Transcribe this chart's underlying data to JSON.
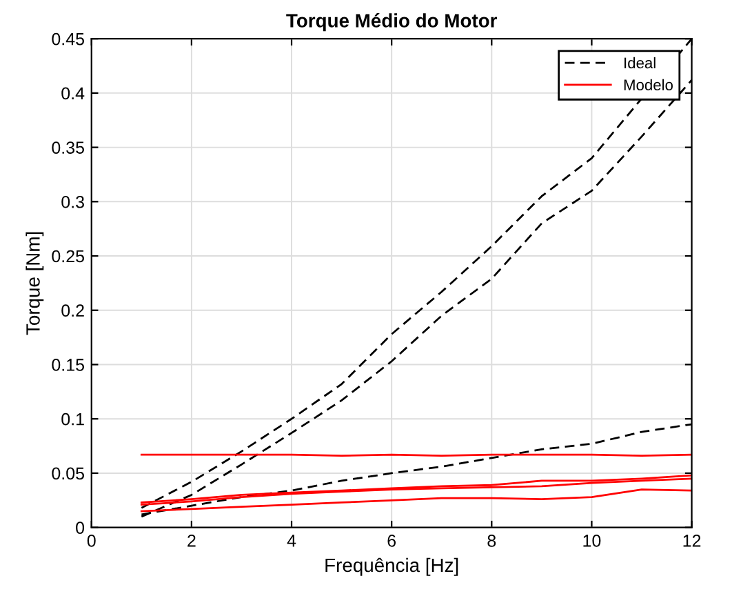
{
  "chart_data": {
    "type": "line",
    "title": "Torque Médio do Motor",
    "xlabel": "Frequência [Hz]",
    "ylabel": "Torque [Nm]",
    "x": [
      1,
      2,
      3,
      4,
      5,
      6,
      7,
      8,
      9,
      10,
      11,
      12
    ],
    "series": [
      {
        "name": "Ideal",
        "color": "#000000",
        "line_style": "dashed",
        "values": [
          0.018,
          0.042,
          0.07,
          0.1,
          0.132,
          0.178,
          0.217,
          0.259,
          0.305,
          0.34,
          0.395,
          0.45
        ]
      },
      {
        "color": "#000000",
        "line_style": "dashed",
        "values": [
          0.01,
          0.03,
          0.058,
          0.087,
          0.117,
          0.153,
          0.195,
          0.229,
          0.28,
          0.31,
          0.36,
          0.412
        ]
      },
      {
        "color": "#000000",
        "line_style": "dashed",
        "values": [
          0.012,
          0.02,
          0.028,
          0.034,
          0.043,
          0.05,
          0.056,
          0.064,
          0.072,
          0.077,
          0.088,
          0.095
        ]
      },
      {
        "name": "Modelo",
        "color": "#ff0000",
        "line_style": "solid",
        "values": [
          0.067,
          0.067,
          0.067,
          0.067,
          0.066,
          0.067,
          0.066,
          0.067,
          0.067,
          0.067,
          0.066,
          0.067
        ]
      },
      {
        "color": "#ff0000",
        "line_style": "solid",
        "values": [
          0.021,
          0.024,
          0.028,
          0.031,
          0.033,
          0.035,
          0.036,
          0.037,
          0.038,
          0.041,
          0.043,
          0.045
        ]
      },
      {
        "color": "#ff0000",
        "line_style": "solid",
        "values": [
          0.023,
          0.026,
          0.03,
          0.032,
          0.034,
          0.036,
          0.038,
          0.039,
          0.043,
          0.043,
          0.045,
          0.048
        ]
      },
      {
        "color": "#ff0000",
        "line_style": "solid",
        "values": [
          0.015,
          0.017,
          0.019,
          0.021,
          0.023,
          0.025,
          0.027,
          0.027,
          0.026,
          0.028,
          0.035,
          0.034
        ]
      }
    ],
    "xlim": [
      0,
      12
    ],
    "xticks": [
      0,
      2,
      4,
      6,
      8,
      10,
      12
    ],
    "ylim": [
      0,
      0.45
    ],
    "yticks": [
      0,
      0.05,
      0.1,
      0.15,
      0.2,
      0.25,
      0.3,
      0.35,
      0.4,
      0.45
    ],
    "grid": true,
    "legend": "top right"
  }
}
